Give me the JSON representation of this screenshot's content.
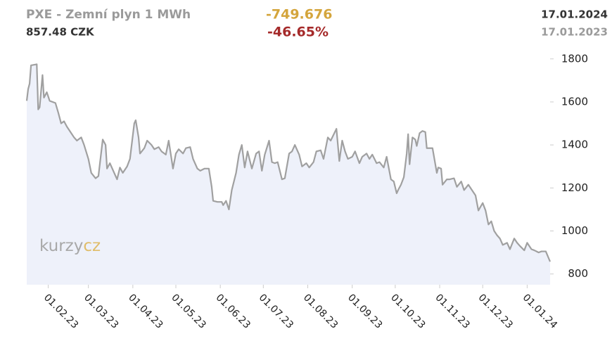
{
  "chart_data": {
    "type": "area",
    "title": "PXE - Zemní plyn 1 MWh",
    "price": "857.48 CZK",
    "change": "-749.676",
    "change_pct": "-46.65%",
    "date_end": "17.01.2024",
    "date_start": "17.01.2023",
    "watermark": [
      "kurzy",
      "cz"
    ],
    "color": "#a0a0a0",
    "area_color": "#eef1fa",
    "xlim": [
      "2023-01-17",
      "2024-01-17"
    ],
    "ylim": [
      750,
      1845
    ],
    "yticks": [
      800,
      1000,
      1200,
      1400,
      1600,
      1800
    ],
    "xticks": [
      {
        "value": "2023-02-01",
        "label": "01.02.23"
      },
      {
        "value": "2023-03-01",
        "label": "01.03.23"
      },
      {
        "value": "2023-04-01",
        "label": "01.04.23"
      },
      {
        "value": "2023-05-01",
        "label": "01.05.23"
      },
      {
        "value": "2023-06-01",
        "label": "01.06.23"
      },
      {
        "value": "2023-07-01",
        "label": "01.07.23"
      },
      {
        "value": "2023-08-01",
        "label": "01.08.23"
      },
      {
        "value": "2023-09-01",
        "label": "01.09.23"
      },
      {
        "value": "2023-10-01",
        "label": "01.10.23"
      },
      {
        "value": "2023-11-01",
        "label": "01.11.23"
      },
      {
        "value": "2023-12-01",
        "label": "01.12.23"
      },
      {
        "value": "2024-01-01",
        "label": "01.01.24"
      }
    ],
    "x": [
      "2023-01-17",
      "2023-01-18",
      "2023-01-19",
      "2023-01-20",
      "2023-01-24",
      "2023-01-25",
      "2023-01-26",
      "2023-01-28",
      "2023-01-29",
      "2023-01-31",
      "2023-02-02",
      "2023-02-06",
      "2023-02-08",
      "2023-02-10",
      "2023-02-12",
      "2023-02-14",
      "2023-02-16",
      "2023-02-19",
      "2023-02-21",
      "2023-02-24",
      "2023-02-26",
      "2023-03-01",
      "2023-03-03",
      "2023-03-06",
      "2023-03-08",
      "2023-03-11",
      "2023-03-13",
      "2023-03-14",
      "2023-03-16",
      "2023-03-19",
      "2023-03-21",
      "2023-03-23",
      "2023-03-25",
      "2023-03-28",
      "2023-03-30",
      "2023-04-02",
      "2023-04-03",
      "2023-04-05",
      "2023-04-06",
      "2023-04-09",
      "2023-04-11",
      "2023-04-14",
      "2023-04-16",
      "2023-04-19",
      "2023-04-21",
      "2023-04-24",
      "2023-04-26",
      "2023-04-29",
      "2023-05-01",
      "2023-05-03",
      "2023-05-06",
      "2023-05-08",
      "2023-05-11",
      "2023-05-13",
      "2023-05-16",
      "2023-05-18",
      "2023-05-21",
      "2023-05-24",
      "2023-05-26",
      "2023-05-27",
      "2023-05-30",
      "2023-06-02",
      "2023-06-03",
      "2023-06-05",
      "2023-06-07",
      "2023-06-09",
      "2023-06-12",
      "2023-06-14",
      "2023-06-16",
      "2023-06-18",
      "2023-06-20",
      "2023-06-23",
      "2023-06-26",
      "2023-06-28",
      "2023-06-30",
      "2023-07-02",
      "2023-07-05",
      "2023-07-07",
      "2023-07-09",
      "2023-07-11",
      "2023-07-14",
      "2023-07-16",
      "2023-07-19",
      "2023-07-21",
      "2023-07-23",
      "2023-07-26",
      "2023-07-28",
      "2023-07-31",
      "2023-08-02",
      "2023-08-05",
      "2023-08-07",
      "2023-08-10",
      "2023-08-12",
      "2023-08-15",
      "2023-08-17",
      "2023-08-21",
      "2023-08-23",
      "2023-08-25",
      "2023-08-27",
      "2023-08-29",
      "2023-09-01",
      "2023-09-03",
      "2023-09-06",
      "2023-09-08",
      "2023-09-11",
      "2023-09-13",
      "2023-09-15",
      "2023-09-18",
      "2023-09-20",
      "2023-09-23",
      "2023-09-25",
      "2023-09-28",
      "2023-09-30",
      "2023-10-02",
      "2023-10-03",
      "2023-10-05",
      "2023-10-07",
      "2023-10-09",
      "2023-10-10",
      "2023-10-11",
      "2023-10-13",
      "2023-10-15",
      "2023-10-16",
      "2023-10-18",
      "2023-10-20",
      "2023-10-22",
      "2023-10-23",
      "2023-10-27",
      "2023-10-30",
      "2023-10-31",
      "2023-11-02",
      "2023-11-03",
      "2023-11-06",
      "2023-11-08",
      "2023-11-11",
      "2023-11-13",
      "2023-11-16",
      "2023-11-18",
      "2023-11-21",
      "2023-11-23",
      "2023-11-26",
      "2023-11-28",
      "2023-12-01",
      "2023-12-03",
      "2023-12-05",
      "2023-12-07",
      "2023-12-09",
      "2023-12-11",
      "2023-12-13",
      "2023-12-15",
      "2023-12-18",
      "2023-12-20",
      "2023-12-23",
      "2023-12-25",
      "2023-12-27",
      "2023-12-30",
      "2024-01-01",
      "2024-01-04",
      "2024-01-06",
      "2024-01-09",
      "2024-01-11",
      "2024-01-14",
      "2024-01-17"
    ],
    "values": [
      1605,
      1660,
      1685,
      1770,
      1775,
      1565,
      1575,
      1725,
      1620,
      1645,
      1605,
      1595,
      1550,
      1500,
      1510,
      1485,
      1465,
      1435,
      1420,
      1435,
      1400,
      1335,
      1270,
      1245,
      1255,
      1425,
      1400,
      1290,
      1315,
      1270,
      1240,
      1295,
      1270,
      1300,
      1335,
      1500,
      1515,
      1435,
      1360,
      1385,
      1420,
      1400,
      1380,
      1390,
      1370,
      1355,
      1420,
      1290,
      1360,
      1380,
      1360,
      1385,
      1390,
      1335,
      1290,
      1280,
      1290,
      1290,
      1205,
      1140,
      1135,
      1135,
      1120,
      1140,
      1100,
      1190,
      1270,
      1355,
      1400,
      1295,
      1370,
      1290,
      1360,
      1370,
      1280,
      1355,
      1420,
      1320,
      1315,
      1320,
      1240,
      1245,
      1360,
      1370,
      1400,
      1355,
      1300,
      1315,
      1295,
      1320,
      1370,
      1375,
      1335,
      1435,
      1420,
      1475,
      1325,
      1420,
      1370,
      1335,
      1345,
      1370,
      1315,
      1345,
      1360,
      1335,
      1355,
      1315,
      1320,
      1295,
      1345,
      1240,
      1230,
      1175,
      1190,
      1215,
      1250,
      1360,
      1450,
      1310,
      1435,
      1425,
      1395,
      1455,
      1465,
      1460,
      1385,
      1385,
      1270,
      1295,
      1290,
      1215,
      1240,
      1240,
      1245,
      1205,
      1230,
      1190,
      1215,
      1195,
      1165,
      1095,
      1130,
      1095,
      1030,
      1045,
      1000,
      980,
      965,
      935,
      945,
      915,
      965,
      945,
      930,
      910,
      945,
      915,
      910,
      900,
      905,
      905,
      857.48
    ]
  }
}
